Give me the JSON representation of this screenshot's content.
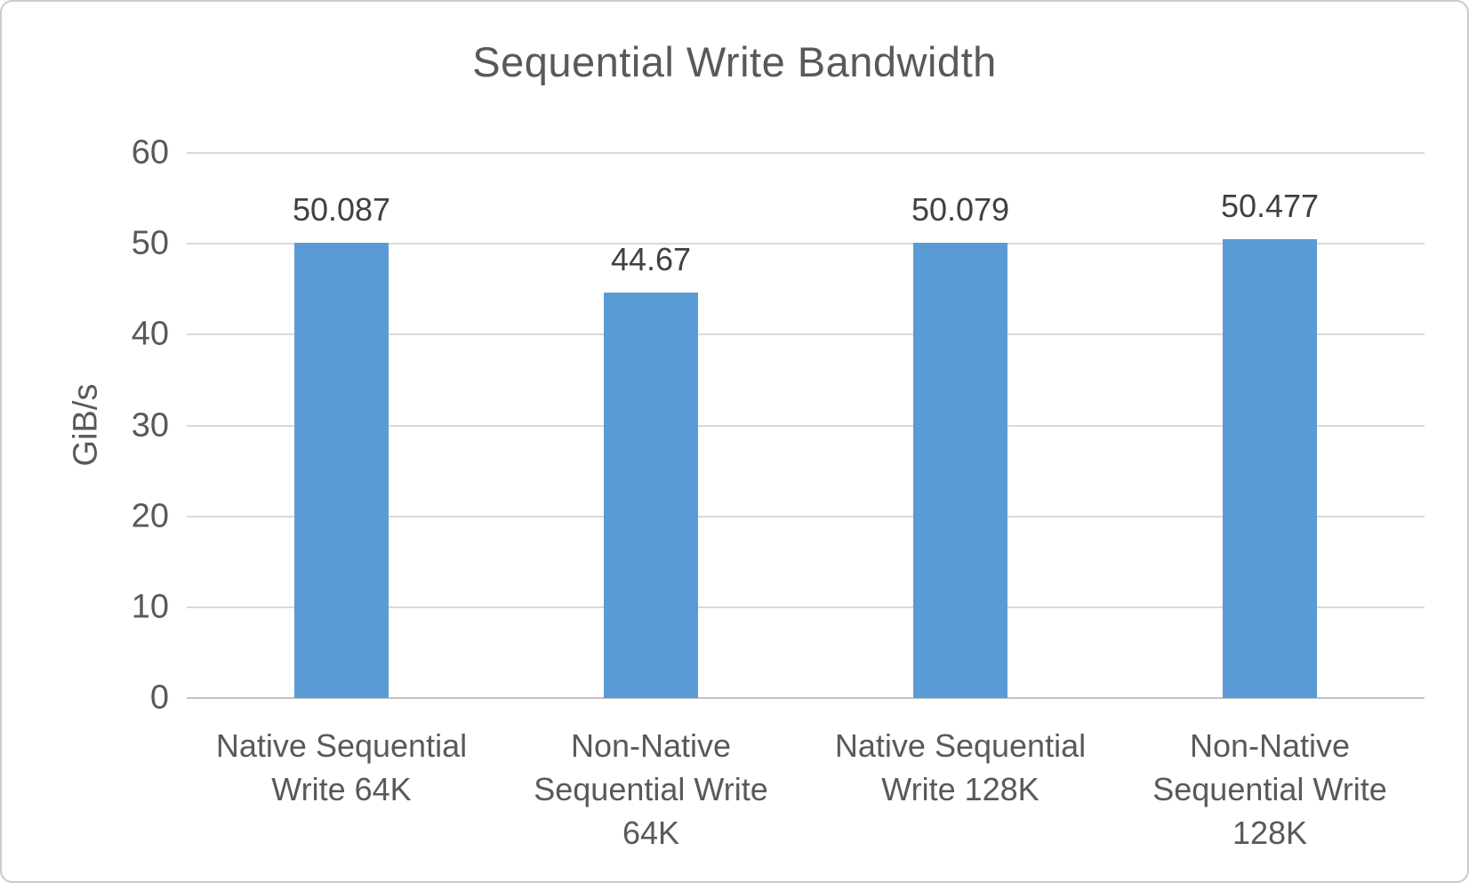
{
  "chart_data": {
    "type": "bar",
    "title": "Sequential Write Bandwidth",
    "ylabel": "GiB/s",
    "xlabel": "",
    "ylim": [
      0,
      60
    ],
    "yticks": [
      0,
      10,
      20,
      30,
      40,
      50,
      60
    ],
    "categories": [
      "Native Sequential Write 64K",
      "Non-Native Sequential Write 64K",
      "Native Sequential Write 128K",
      "Non-Native Sequential Write 128K"
    ],
    "category_lines": [
      [
        "Native Sequential",
        "Write 64K"
      ],
      [
        "Non-Native",
        "Sequential Write",
        "64K"
      ],
      [
        "Native Sequential",
        "Write 128K"
      ],
      [
        "Non-Native",
        "Sequential Write",
        "128K"
      ]
    ],
    "values": [
      50.087,
      44.67,
      50.079,
      50.477
    ],
    "value_labels": [
      "50.087",
      "44.67",
      "50.079",
      "50.477"
    ],
    "grid": true,
    "legend": "none",
    "colors": {
      "bar": "#5B9BD5",
      "gridline": "#D9D9D9",
      "axis_line": "#C3C3C3",
      "title_text": "#595959",
      "axis_text": "#595959",
      "value_label_text": "#404040",
      "border": "#CBCBCB",
      "background": "#FFFFFF"
    }
  }
}
